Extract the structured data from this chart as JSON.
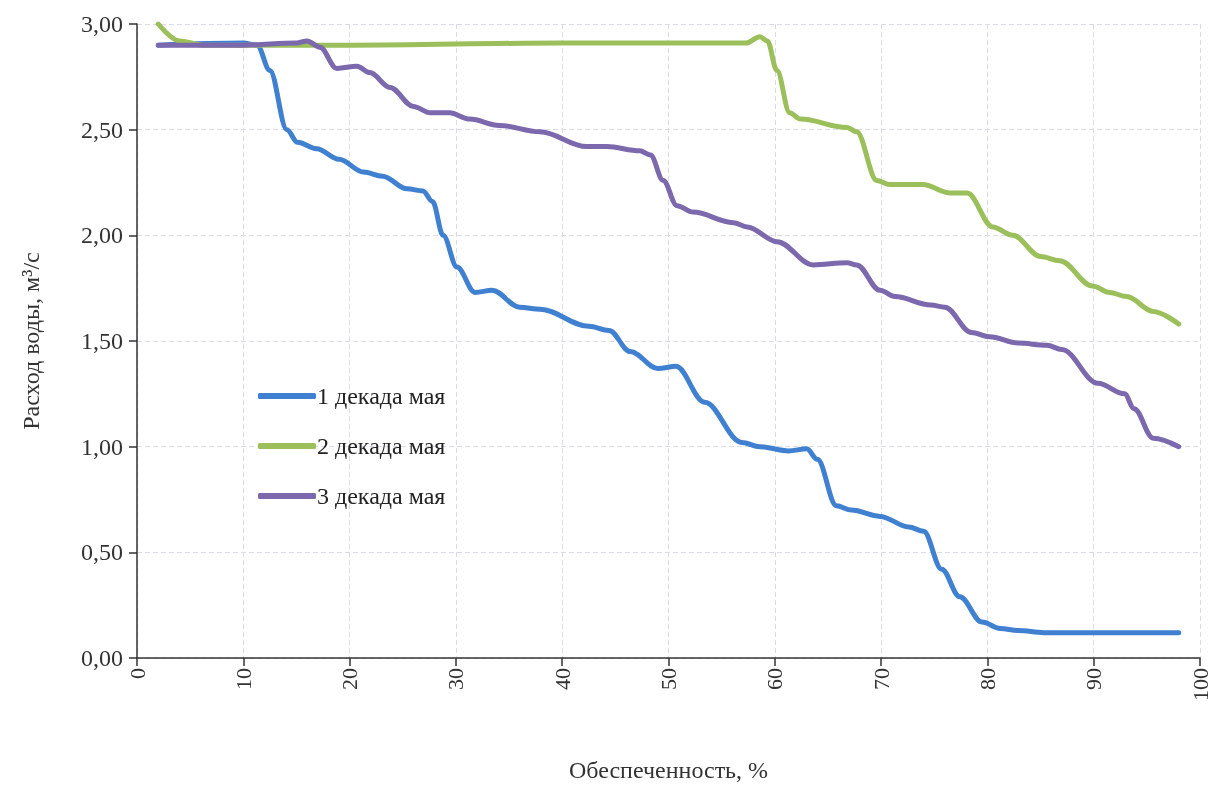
{
  "chart_data": {
    "type": "line",
    "xlabel": "Обеспеченность, %",
    "ylabel": "Расход воды, м³/с",
    "xlim": [
      0,
      100
    ],
    "xticks": [
      0,
      10,
      20,
      30,
      40,
      50,
      60,
      70,
      80,
      90,
      100
    ],
    "ylim": [
      0,
      3
    ],
    "yticks": [
      {
        "value": 0,
        "label": "0,00"
      },
      {
        "value": 0.5,
        "label": "0,50"
      },
      {
        "value": 1,
        "label": "1,00"
      },
      {
        "value": 1.5,
        "label": "1,50"
      },
      {
        "value": 2,
        "label": "2,00"
      },
      {
        "value": 2.5,
        "label": "2,50"
      },
      {
        "value": 3,
        "label": "3,00"
      }
    ],
    "grid": true,
    "legend": "left",
    "series": [
      {
        "name": "1 декада мая",
        "color": "#4080d0",
        "x": [
          2,
          10,
          11.3,
          12.5,
          14.1,
          15.1,
          16.9,
          19,
          21.3,
          23.1,
          25.4,
          26.9,
          27.8,
          28.8,
          30.1,
          31.8,
          33.4,
          36,
          37.9,
          42.5,
          44.4,
          46.4,
          49,
          50.7,
          53.4,
          56.9,
          58.6,
          61.3,
          63,
          64,
          65.8,
          67.2,
          69.9,
          72.6,
          74,
          75.7,
          77.4,
          79.5,
          81.2,
          82.9,
          85.3,
          90,
          98
        ],
        "values": [
          2.9,
          2.91,
          2.9,
          2.78,
          2.5,
          2.44,
          2.41,
          2.36,
          2.3,
          2.28,
          2.22,
          2.21,
          2.16,
          2,
          1.85,
          1.73,
          1.74,
          1.66,
          1.65,
          1.57,
          1.55,
          1.45,
          1.37,
          1.38,
          1.21,
          1.02,
          1,
          0.98,
          0.99,
          0.94,
          0.72,
          0.7,
          0.67,
          0.62,
          0.6,
          0.42,
          0.29,
          0.17,
          0.14,
          0.13,
          0.12,
          0.12,
          0.12
        ]
      },
      {
        "name": "2 декада мая",
        "color": "#9bbf5a",
        "x": [
          2,
          4,
          6.2,
          20,
          40,
          57.3,
          58.6,
          59.3,
          60.2,
          61.4,
          62.4,
          66.8,
          67.7,
          69.6,
          70.8,
          73.9,
          76.5,
          78.1,
          80.5,
          82.4,
          85,
          86.8,
          89.9,
          91.5,
          93.1,
          95.6,
          98
        ],
        "values": [
          3,
          2.92,
          2.9,
          2.9,
          2.91,
          2.91,
          2.94,
          2.92,
          2.78,
          2.58,
          2.55,
          2.51,
          2.49,
          2.26,
          2.24,
          2.24,
          2.2,
          2.2,
          2.04,
          2,
          1.9,
          1.88,
          1.76,
          1.73,
          1.71,
          1.64,
          1.58
        ]
      },
      {
        "name": "3 декада мая",
        "color": "#7b68ad",
        "x": [
          2,
          10,
          15,
          16,
          17.2,
          18.8,
          20.7,
          21.9,
          23.8,
          26,
          27.6,
          29.4,
          31.3,
          34.1,
          37.9,
          42.3,
          44.2,
          47.3,
          48.3,
          49.5,
          50.8,
          52.3,
          56.1,
          57.4,
          60.2,
          63.6,
          66.8,
          67.7,
          69.9,
          71.3,
          74.7,
          76,
          78.5,
          80.2,
          82.9,
          85.6,
          87,
          90.4,
          92.9,
          93.8,
          95.6,
          98
        ],
        "values": [
          2.9,
          2.9,
          2.91,
          2.92,
          2.89,
          2.79,
          2.8,
          2.77,
          2.7,
          2.61,
          2.58,
          2.58,
          2.55,
          2.52,
          2.49,
          2.42,
          2.42,
          2.4,
          2.38,
          2.26,
          2.14,
          2.11,
          2.06,
          2.04,
          1.97,
          1.86,
          1.87,
          1.86,
          1.74,
          1.71,
          1.67,
          1.66,
          1.54,
          1.52,
          1.49,
          1.48,
          1.46,
          1.3,
          1.25,
          1.18,
          1.04,
          1
        ]
      }
    ]
  }
}
